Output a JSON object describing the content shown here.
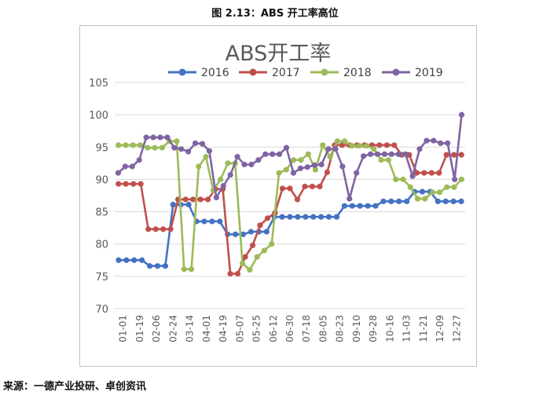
{
  "figure_caption": "图 2.13：ABS 开工率高位",
  "source": "来源：一德产业投研、卓创资讯",
  "chart_data": {
    "type": "line",
    "title": "ABS开工率",
    "xlabel": "",
    "ylabel": "",
    "ylim": [
      70,
      105
    ],
    "yticks": [
      70,
      75,
      80,
      85,
      90,
      95,
      100,
      105
    ],
    "grid": true,
    "legend_position": "top",
    "x_tick_labels": [
      "01-01",
      "01-19",
      "02-06",
      "02-24",
      "03-14",
      "04-01",
      "04-19",
      "05-07",
      "05-25",
      "06-12",
      "06-30",
      "07-18",
      "08-05",
      "08-23",
      "09-10",
      "09-28",
      "10-16",
      "11-03",
      "11-21",
      "12-09",
      "12-27"
    ],
    "series": [
      {
        "name": "2016",
        "color": "#4472C4",
        "values": [
          77.5,
          77.5,
          77.5,
          77.5,
          76.6,
          76.6,
          76.6,
          86.1,
          86.1,
          86.1,
          83.5,
          83.5,
          83.5,
          83.5,
          81.5,
          81.5,
          81.5,
          81.9,
          81.9,
          81.9,
          84.2,
          84.2,
          84.2,
          84.2,
          84.2,
          84.2,
          84.2,
          84.2,
          84.2,
          85.9,
          85.9,
          85.9,
          85.9,
          85.9,
          86.6,
          86.6,
          86.6,
          86.6,
          88.1,
          88.1,
          88.1,
          86.6,
          86.6,
          86.6,
          86.6
        ]
      },
      {
        "name": "2017",
        "color": "#C0504D",
        "values": [
          89.3,
          89.3,
          89.3,
          89.3,
          82.3,
          82.3,
          82.3,
          82.3,
          86.9,
          86.9,
          86.9,
          86.9,
          86.9,
          88.5,
          88.5,
          75.4,
          75.4,
          78.0,
          79.8,
          82.9,
          84.0,
          84.8,
          88.6,
          88.6,
          86.9,
          88.9,
          88.9,
          88.9,
          91.1,
          95.3,
          95.3,
          95.3,
          95.3,
          95.3,
          95.3,
          95.3,
          95.3,
          95.3,
          93.8,
          93.8,
          91.0,
          91.0,
          91.0,
          91.0,
          93.8,
          93.8,
          93.8
        ]
      },
      {
        "name": "2018",
        "color": "#9BBB59",
        "values": [
          95.3,
          95.3,
          95.3,
          95.3,
          94.9,
          94.9,
          94.9,
          95.9,
          95.9,
          76.1,
          76.1,
          92.0,
          93.5,
          88.3,
          90.0,
          92.5,
          92.5,
          77.0,
          76.0,
          78.0,
          79.0,
          80.0,
          91.0,
          91.5,
          93.0,
          93.0,
          93.9,
          91.5,
          95.3,
          93.5,
          95.9,
          95.9,
          95.2,
          95.2,
          95.2,
          94.7,
          93.0,
          93.0,
          90.0,
          90.0,
          88.8,
          87.0,
          87.0,
          88.0,
          88.0,
          88.8,
          88.8,
          90.0
        ]
      },
      {
        "name": "2019",
        "color": "#8064A2",
        "values": [
          91.0,
          92.0,
          92.0,
          93.0,
          96.5,
          96.5,
          96.5,
          96.5,
          94.9,
          94.7,
          94.3,
          95.6,
          95.5,
          94.4,
          87.2,
          89.0,
          90.7,
          93.5,
          92.3,
          92.3,
          93.0,
          93.9,
          93.9,
          93.9,
          94.9,
          91.0,
          91.7,
          91.9,
          92.2,
          92.3,
          94.7,
          94.7,
          92.0,
          87.0,
          91.0,
          93.6,
          93.9,
          93.9,
          93.9,
          93.9,
          93.9,
          93.9,
          90.5,
          94.7,
          96.0,
          96.0,
          95.6,
          95.6,
          90.0,
          100.0
        ]
      }
    ]
  }
}
